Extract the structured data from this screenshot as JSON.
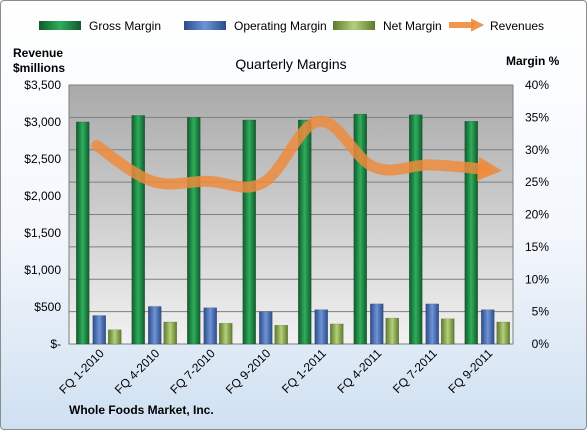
{
  "chart_data": {
    "type": "bar",
    "title": "Quarterly Margins",
    "company": "Whole Foods Market, Inc.",
    "left_axis_label": [
      "Revenue",
      "$millions"
    ],
    "right_axis_label": "Margin %",
    "categories": [
      "FQ 1-2010",
      "FQ 4-2010",
      "FQ 7-2010",
      "FQ 9-2010",
      "FQ 1-2011",
      "FQ 4-2011",
      "FQ 7-2011",
      "FQ 9-2011"
    ],
    "left_axis": {
      "min": 0,
      "max": 3500,
      "step": 500,
      "tick_labels": [
        "$-",
        "$500",
        "$1,000",
        "$1,500",
        "$2,000",
        "$2,500",
        "$3,000",
        "$3,500"
      ]
    },
    "right_axis": {
      "min": 0,
      "max": 40,
      "step": 5,
      "tick_labels": [
        "0%",
        "5%",
        "10%",
        "15%",
        "20%",
        "25%",
        "30%",
        "35%",
        "40%"
      ]
    },
    "series": [
      {
        "name": "Gross Margin",
        "kind": "bar",
        "axis": "right",
        "color": "#1e8e47",
        "values": [
          34.3,
          35.3,
          35.0,
          34.6,
          34.6,
          35.5,
          35.4,
          34.4
        ]
      },
      {
        "name": "Operating Margin",
        "kind": "bar",
        "axis": "right",
        "color": "#4472c4",
        "values": [
          4.4,
          5.8,
          5.6,
          5.0,
          5.3,
          6.2,
          6.2,
          5.3
        ]
      },
      {
        "name": "Net Margin",
        "kind": "bar",
        "axis": "right",
        "color": "#9bbb59",
        "values": [
          2.2,
          3.4,
          3.2,
          2.9,
          3.1,
          4.0,
          3.9,
          3.4
        ]
      },
      {
        "name": "Revenues",
        "kind": "line",
        "axis": "left",
        "color": "#ed8b3d",
        "values": [
          2680,
          2200,
          2200,
          2180,
          3010,
          2390,
          2420,
          2360
        ]
      }
    ],
    "grid": true,
    "legend_position": "top"
  }
}
